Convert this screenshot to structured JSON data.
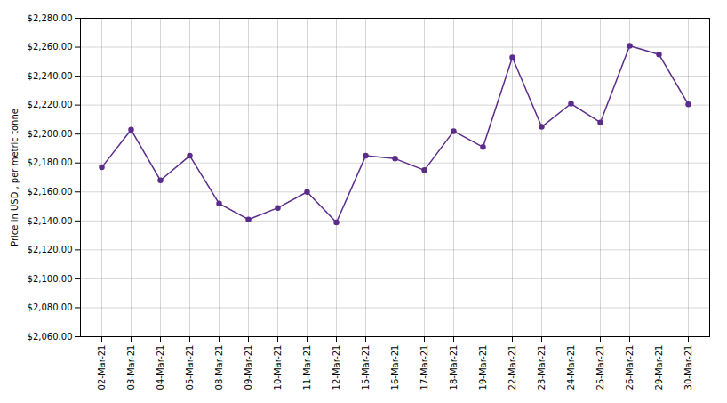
{
  "chart_data": {
    "type": "line",
    "categories": [
      "02-Mar-21",
      "03-Mar-21",
      "04-Mar-21",
      "05-Mar-21",
      "08-Mar-21",
      "09-Mar-21",
      "10-Mar-21",
      "11-Mar-21",
      "12-Mar-21",
      "15-Mar-21",
      "16-Mar-21",
      "17-Mar-21",
      "18-Mar-21",
      "19-Mar-21",
      "22-Mar-21",
      "23-Mar-21",
      "24-Mar-21",
      "25-Mar-21",
      "26-Mar-21",
      "29-Mar-21",
      "30-Mar-21"
    ],
    "values": [
      2177,
      2203,
      2168,
      2185,
      2152,
      2141,
      2149,
      2160,
      2139,
      2185,
      2183,
      2175,
      2202,
      2191,
      2253,
      2205,
      2221,
      2208,
      2261,
      2255,
      2220.5
    ],
    "color": "#5B2C8B",
    "marker": "circle",
    "ylabel": "Price in USD , per metric tonne",
    "ylim": [
      2060,
      2280
    ],
    "yticks": [
      {
        "value": 2060,
        "label": "$2,060.00"
      },
      {
        "value": 2080,
        "label": "$2,080.00"
      },
      {
        "value": 2100,
        "label": "$2,100.00"
      },
      {
        "value": 2120,
        "label": "$2,120.00"
      },
      {
        "value": 2140,
        "label": "$2,140.00"
      },
      {
        "value": 2160,
        "label": "$2,160.00"
      },
      {
        "value": 2180,
        "label": "$2,180.00"
      },
      {
        "value": 2200,
        "label": "$2,200.00"
      },
      {
        "value": 2220,
        "label": "$2,220.00"
      },
      {
        "value": 2240,
        "label": "$2,240.00"
      },
      {
        "value": 2260,
        "label": "$2,260.00"
      },
      {
        "value": 2280,
        "label": "$2,280.00"
      }
    ],
    "grid": true
  }
}
